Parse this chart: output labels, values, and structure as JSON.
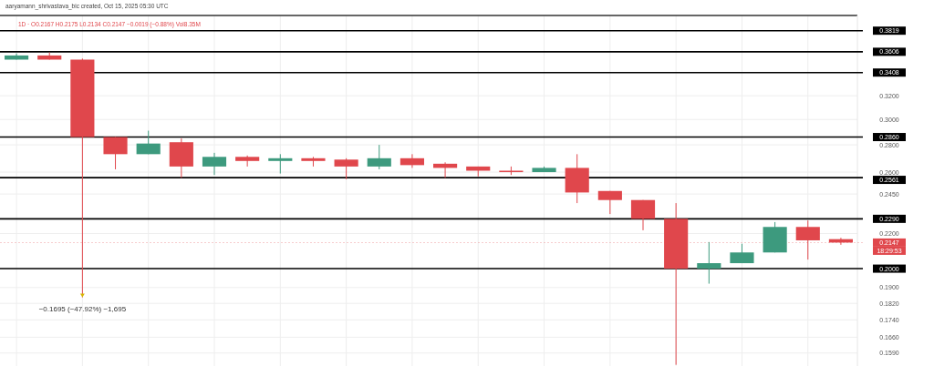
{
  "chart_data": {
    "type": "candlestick",
    "title": "aaryamann_shrivastava_bic created, Oct 15, 2025 05:30 UTC",
    "subtitle": "1D · O0.2167 H0.2175 L0.2134 C0.2147 −0.0019 (−0.88%) Vol8.35M",
    "categories": [
      null,
      null,
      null,
      null,
      null,
      null,
      null,
      null,
      null,
      null,
      null,
      null,
      null,
      null,
      null,
      null,
      null,
      null,
      null,
      null,
      null,
      null,
      null,
      null,
      null,
      null
    ],
    "ohlc": [
      [
        0.353,
        0.359,
        0.353,
        0.357
      ],
      [
        0.357,
        0.36,
        0.353,
        0.353
      ],
      [
        0.353,
        0.354,
        0.185,
        0.286
      ],
      [
        0.286,
        0.286,
        0.262,
        0.273
      ],
      [
        0.273,
        0.291,
        0.273,
        0.281
      ],
      [
        0.282,
        0.285,
        0.256,
        0.264
      ],
      [
        0.264,
        0.274,
        0.258,
        0.271
      ],
      [
        0.271,
        0.272,
        0.264,
        0.268
      ],
      [
        0.268,
        0.273,
        0.259,
        0.27
      ],
      [
        0.27,
        0.271,
        0.264,
        0.268
      ],
      [
        0.269,
        0.27,
        0.255,
        0.264
      ],
      [
        0.264,
        0.28,
        0.262,
        0.27
      ],
      [
        0.27,
        0.273,
        0.263,
        0.265
      ],
      [
        0.266,
        0.267,
        0.256,
        0.263
      ],
      [
        0.264,
        0.264,
        0.257,
        0.261
      ],
      [
        0.261,
        0.264,
        0.258,
        0.26
      ],
      [
        0.26,
        0.264,
        0.26,
        0.263
      ],
      [
        0.263,
        0.273,
        0.239,
        0.246
      ],
      [
        0.247,
        0.247,
        0.232,
        0.241
      ],
      [
        0.241,
        0.241,
        0.222,
        0.229
      ],
      [
        0.229,
        0.239,
        0.154,
        0.2
      ],
      [
        0.2,
        0.215,
        0.192,
        0.203
      ],
      [
        0.203,
        0.214,
        0.203,
        0.209
      ],
      [
        0.209,
        0.227,
        0.209,
        0.224
      ],
      [
        0.224,
        0.228,
        0.205,
        0.216
      ],
      [
        0.2167,
        0.2175,
        0.2134,
        0.2147
      ]
    ],
    "colors": [
      "#3d9a7e",
      "#e0474c",
      "#e0474c",
      "#e0474c",
      "#3d9a7e",
      "#e0474c",
      "#3d9a7e",
      "#e0474c",
      "#3d9a7e",
      "#e0474c",
      "#e0474c",
      "#3d9a7e",
      "#e0474c",
      "#e0474c",
      "#e0474c",
      "#e0474c",
      "#3d9a7e",
      "#e0474c",
      "#e0474c",
      "#e0474c",
      "#e0474c",
      "#3d9a7e",
      "#3d9a7e",
      "#3d9a7e",
      "#e0474c",
      "#e0474c"
    ],
    "log": true,
    "ylim": [
      0.1535,
      0.398
    ],
    "yticks": [
      {
        "value": 0.32,
        "label": "0.3200"
      },
      {
        "value": 0.3,
        "label": "0.3000"
      },
      {
        "value": 0.28,
        "label": "0.2800"
      },
      {
        "value": 0.26,
        "label": "0.2600"
      },
      {
        "value": 0.245,
        "label": "0.2450"
      },
      {
        "value": 0.22,
        "label": "0.2200"
      },
      {
        "value": 0.19,
        "label": "0.1900"
      },
      {
        "value": 0.182,
        "label": "0.1820"
      },
      {
        "value": 0.174,
        "label": "0.1740"
      },
      {
        "value": 0.166,
        "label": "0.1660"
      },
      {
        "value": 0.159,
        "label": "0.1590"
      }
    ],
    "grid": true,
    "ref_lines": [
      {
        "axis": "y",
        "value": 0.3819,
        "label": "0.3819",
        "color": "#000000"
      },
      {
        "axis": "y",
        "value": 0.3606,
        "label": "0.3606",
        "color": "#000000"
      },
      {
        "axis": "y",
        "value": 0.3408,
        "label": "0.3408",
        "color": "#000000"
      },
      {
        "axis": "y",
        "value": 0.286,
        "label": "0.2860",
        "color": "#000000"
      },
      {
        "axis": "y",
        "value": 0.2561,
        "label": "0.2561",
        "color": "#000000"
      },
      {
        "axis": "y",
        "value": 0.229,
        "label": "0.2290",
        "color": "#000000"
      },
      {
        "axis": "y",
        "value": 0.2,
        "label": "0.2000",
        "color": "#000000"
      },
      {
        "axis": "y",
        "value": 0.2147,
        "label": "0.2147",
        "color": "#e0474c",
        "line_style": "dotted"
      }
    ],
    "annotations": [
      "18:29:53",
      {
        "text": "−0.1695 (−47.92%) −1,695",
        "y": 0.185
      }
    ]
  }
}
